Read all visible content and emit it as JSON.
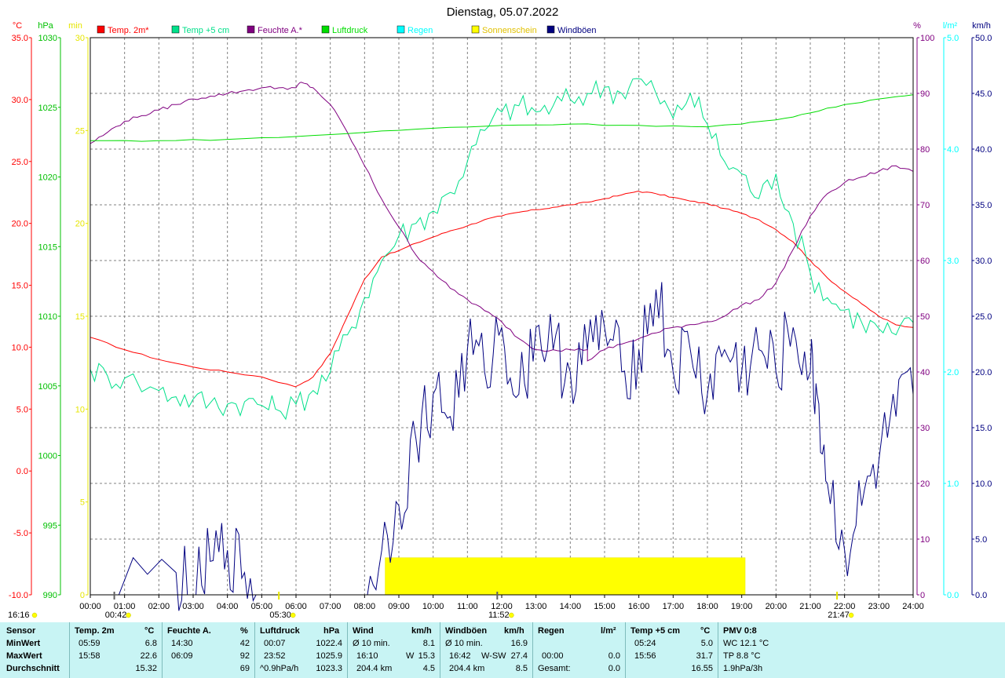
{
  "chart_data": {
    "type": "line",
    "title": "Dienstag, 05.07.2022",
    "x_ticks": [
      "00:00",
      "01:00",
      "02:00",
      "03:00",
      "04:00",
      "05:00",
      "06:00",
      "07:00",
      "08:00",
      "09:00",
      "10:00",
      "11:00",
      "12:00",
      "13:00",
      "14:00",
      "15:00",
      "16:00",
      "17:00",
      "18:00",
      "19:00",
      "20:00",
      "21:00",
      "22:00",
      "23:00",
      "24:00"
    ],
    "legend": [
      {
        "label": "Temp. 2m*",
        "color": "#ff0000"
      },
      {
        "label": "Temp +5 cm",
        "color": "#00e08a"
      },
      {
        "label": "Feuchte A.*",
        "color": "#800080"
      },
      {
        "label": "Luftdruck",
        "color": "#00dd00"
      },
      {
        "label": "Regen",
        "color": "#00ffff"
      },
      {
        "label": "Sonnenschein",
        "color": "#ffff00"
      },
      {
        "label": "Windböen",
        "color": "#000080"
      }
    ],
    "axes": {
      "temperature": {
        "unit": "°C",
        "color": "#ff0000",
        "range": [
          -10,
          35
        ],
        "ticks": [
          "35.0",
          "30.0",
          "25.0",
          "20.0",
          "15.0",
          "10.0",
          "5.0",
          "0.0",
          "-5.0",
          "-10.0"
        ]
      },
      "pressure": {
        "unit": "hPa",
        "color": "#00c000",
        "range": [
          990,
          1030
        ],
        "ticks": [
          "1030",
          "1025",
          "1020",
          "1015",
          "1010",
          "1005",
          "1000",
          "995",
          "990"
        ]
      },
      "sunshine": {
        "unit": "min",
        "color": "#e6e600",
        "range": [
          0,
          30
        ],
        "ticks": [
          "30",
          "25",
          "20",
          "15",
          "10",
          "5",
          "0"
        ]
      },
      "humidity": {
        "unit": "%",
        "color": "#800080",
        "range": [
          0,
          100
        ],
        "ticks": [
          "100",
          "90",
          "80",
          "70",
          "60",
          "50",
          "40",
          "30",
          "20",
          "10",
          "0"
        ]
      },
      "rain": {
        "unit": "l/m²",
        "color": "#00ffff",
        "range": [
          0,
          5
        ],
        "ticks": [
          "5.0",
          "4.0",
          "3.0",
          "2.0",
          "1.0",
          "0.0"
        ]
      },
      "wind": {
        "unit": "km/h",
        "color": "#000080",
        "range": [
          0,
          50
        ],
        "ticks": [
          "50.0",
          "45.0",
          "40.0",
          "35.0",
          "30.0",
          "25.0",
          "20.0",
          "15.0",
          "10.0",
          "5.0",
          "0.0"
        ]
      }
    },
    "x_unit": "hours",
    "series": [
      {
        "name": "Temp. 2m*",
        "axis": "temperature",
        "color": "#ff0000",
        "x": [
          0,
          1,
          2,
          3,
          4,
          5,
          5.98,
          6.5,
          7,
          7.5,
          8,
          8.5,
          9,
          9.5,
          10,
          10.5,
          11,
          11.5,
          12,
          12.5,
          13,
          13.5,
          14,
          14.5,
          15,
          15.5,
          15.97,
          16.5,
          17,
          17.5,
          18,
          18.5,
          19,
          19.5,
          20,
          20.5,
          21,
          21.5,
          22,
          22.5,
          23,
          23.5,
          24
        ],
        "y": [
          10.8,
          9.8,
          9.0,
          8.4,
          8.0,
          7.6,
          6.8,
          7.6,
          9.5,
          12.5,
          15.5,
          17.3,
          17.8,
          18.4,
          18.9,
          19.4,
          19.8,
          20.3,
          20.6,
          20.9,
          21.1,
          21.3,
          21.5,
          21.7,
          22.0,
          22.3,
          22.6,
          22.4,
          22.1,
          21.8,
          21.6,
          21.2,
          20.8,
          20.3,
          19.5,
          18.5,
          17.0,
          15.6,
          14.5,
          13.5,
          12.5,
          11.8,
          11.6
        ]
      },
      {
        "name": "Temp +5 cm",
        "axis": "temperature",
        "color": "#00e08a",
        "x": [
          0,
          0.5,
          1,
          2,
          2.5,
          3,
          3.5,
          4,
          4.5,
          5,
          5.4,
          6,
          6.5,
          7,
          7.5,
          8,
          8.5,
          9,
          9.5,
          10,
          10.5,
          11,
          11.5,
          12,
          12.5,
          13,
          13.5,
          14,
          14.5,
          15,
          15.5,
          15.93,
          16.5,
          17,
          17.5,
          18,
          18.5,
          19,
          19.5,
          20,
          20.5,
          21,
          21.5,
          22,
          22.5,
          23,
          23.5,
          24
        ],
        "y": [
          8.2,
          7.7,
          7.5,
          6.5,
          6.0,
          5.8,
          5.5,
          5.4,
          5.6,
          5.3,
          5.0,
          5.4,
          6.5,
          8.0,
          11.0,
          14.0,
          17.0,
          19.0,
          20.0,
          21.0,
          22.5,
          25.0,
          27.5,
          29.0,
          29.5,
          29.0,
          29.5,
          30.0,
          30.5,
          31.0,
          30.5,
          31.7,
          30.5,
          28.5,
          30.5,
          28.0,
          25.0,
          24.0,
          22.0,
          24.0,
          20.0,
          16.0,
          14.0,
          13.0,
          12.0,
          11.5,
          11.0,
          12.0
        ]
      },
      {
        "name": "Feuchte A.*",
        "axis": "humidity",
        "color": "#800080",
        "x": [
          0,
          0.5,
          1,
          1.5,
          2,
          2.5,
          3,
          3.5,
          4,
          4.5,
          5,
          5.5,
          6,
          6.15,
          6.5,
          7,
          7.5,
          8,
          8.5,
          9,
          9.5,
          10,
          10.5,
          11,
          11.5,
          12,
          12.5,
          13,
          13.5,
          14,
          14.5,
          14.5,
          15,
          15.5,
          16,
          16.5,
          17,
          17.5,
          18,
          18.5,
          19,
          19.5,
          20,
          20.5,
          21,
          21.5,
          22,
          22.5,
          23,
          23.5,
          24
        ],
        "y": [
          81,
          83,
          85,
          86,
          87,
          88,
          89,
          89.5,
          90,
          90.5,
          91,
          91,
          91,
          92,
          91,
          88,
          83,
          77,
          71,
          66,
          61,
          58,
          55,
          53,
          51,
          49,
          46,
          44,
          44,
          44,
          44,
          42,
          44,
          45,
          46,
          47,
          48,
          48.5,
          49,
          50,
          52,
          53,
          56,
          62,
          68,
          72,
          74,
          75,
          76,
          77,
          76
        ]
      },
      {
        "name": "Luftdruck",
        "axis": "pressure",
        "color": "#00dd00",
        "x": [
          0,
          2,
          4,
          6,
          8,
          10,
          12,
          14,
          16,
          18,
          19,
          20,
          21,
          22,
          23,
          24
        ],
        "y": [
          1022.6,
          1022.6,
          1022.7,
          1022.9,
          1023.2,
          1023.5,
          1023.7,
          1023.8,
          1023.7,
          1023.6,
          1023.8,
          1024.1,
          1024.6,
          1025.2,
          1025.6,
          1025.9
        ]
      },
      {
        "name": "Windböen",
        "axis": "wind",
        "color": "#000080",
        "x": [
          0,
          2.5,
          3,
          3.5,
          4,
          4.5,
          5,
          6,
          8,
          8.5,
          9,
          9.5,
          10,
          10.5,
          11,
          11.5,
          12,
          12.5,
          13,
          13.5,
          14,
          14.5,
          15,
          15.5,
          16,
          16.5,
          17,
          17.5,
          18,
          18.5,
          19,
          19.5,
          20,
          20.5,
          21,
          21.2,
          21.5,
          22,
          22.5,
          23,
          23.5,
          24
        ],
        "y": [
          0,
          2,
          0,
          3,
          4,
          2,
          0,
          0,
          0,
          4,
          8,
          14,
          18,
          16,
          22,
          20,
          24,
          18,
          24,
          22,
          20,
          22,
          24,
          20,
          22,
          27.4,
          20,
          22,
          18,
          22,
          20,
          22,
          20,
          24,
          20,
          18,
          10,
          4,
          8,
          12,
          16,
          18
        ]
      },
      {
        "name": "Sonnenschein",
        "axis": "sunshine",
        "color": "#ffff00",
        "x": [
          0,
          8.6,
          8.6,
          10.3,
          11,
          11.6,
          12,
          12.7,
          13,
          14,
          14.5,
          15,
          15.5,
          16,
          16.5,
          17,
          17.5,
          18,
          18.5,
          19,
          19.1,
          24
        ],
        "y": [
          0,
          0,
          2,
          2,
          2,
          2,
          2,
          2,
          2,
          2,
          2,
          2,
          2,
          2,
          2,
          2,
          2,
          2,
          2,
          2,
          0,
          0
        ]
      }
    ],
    "markers": [
      {
        "label": "00:42",
        "x": 0.7,
        "symbol": "moonrise"
      },
      {
        "label": "05:30",
        "x": 5.5,
        "symbol": "sunrise"
      },
      {
        "label": "11:52",
        "x": 11.87,
        "symbol": "moonset"
      },
      {
        "label": "21:47",
        "x": 21.78,
        "symbol": "sunset"
      }
    ],
    "corner_label": "16:16",
    "grid": true
  },
  "stats": {
    "sensor": {
      "title": "Sensor",
      "rows": [
        "MinWert",
        "MaxWert",
        "Durchschnitt"
      ]
    },
    "temp2m": {
      "title": "Temp. 2m",
      "unit": "°C",
      "min_time": "05:59",
      "min": "6.8",
      "max_time": "15:58",
      "max": "22.6",
      "avg": "15.32"
    },
    "humidity": {
      "title": "Feuchte A.",
      "unit": "%",
      "min_time": "14:30",
      "min": "42",
      "max_time": "06:09",
      "max": "92",
      "avg": "69"
    },
    "pressure": {
      "title": "Luftdruck",
      "unit": "hPa",
      "min_time": "00:07",
      "min": "1022.4",
      "max_time": "23:52",
      "max": "1025.9",
      "trend": "^0.9hPa/h",
      "avg": "1023.3"
    },
    "wind": {
      "title": "Wind",
      "unit": "km/h",
      "min_label": "Ø 10 min.",
      "min": "8.1",
      "max_time": "16:10",
      "max_dir": "W",
      "max": "15.3",
      "dist": "204.4 km",
      "avg": "4.5"
    },
    "gust": {
      "title": "Windböen",
      "unit": "km/h",
      "min_label": "Ø 10 min.",
      "min": "16.9",
      "max_time": "16:42",
      "max_dir": "W-SW",
      "max": "27.4",
      "dist": "204.4 km",
      "avg": "8.5"
    },
    "rain": {
      "title": "Regen",
      "unit": "l/m²",
      "max_time": "00:00",
      "max": "0.0",
      "total_label": "Gesamt:",
      "total": "0.0"
    },
    "temp5cm": {
      "title": "Temp +5 cm",
      "unit": "°C",
      "min_time": "05:24",
      "min": "5.0",
      "max_time": "15:56",
      "max": "31.7",
      "avg": "16.55"
    },
    "pmv": {
      "title": "PMV 0:8",
      "wc": "WC 12.1 °C",
      "tp": "TP 8.8 °C",
      "trend": "1.9hPa/3h"
    }
  }
}
